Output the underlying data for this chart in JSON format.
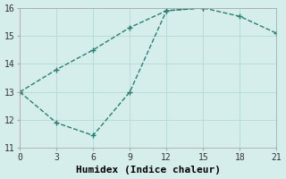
{
  "line1_x": [
    0,
    3,
    6,
    9,
    12,
    15,
    18,
    21
  ],
  "line1_y": [
    13.0,
    11.9,
    11.45,
    13.0,
    15.9,
    16.0,
    15.7,
    15.1
  ],
  "line2_x": [
    0,
    3,
    6,
    9,
    12,
    15
  ],
  "line2_y": [
    13.0,
    13.8,
    14.5,
    15.3,
    15.9,
    16.0
  ],
  "line_color": "#2a7f72",
  "marker": "+",
  "marker_size": 5,
  "xlabel": "Humidex (Indice chaleur)",
  "xlim": [
    0,
    21
  ],
  "ylim": [
    11,
    16
  ],
  "xticks": [
    0,
    3,
    6,
    9,
    12,
    15,
    18,
    21
  ],
  "yticks": [
    11,
    12,
    13,
    14,
    15,
    16
  ],
  "bg_color": "#d5eeeb",
  "grid_color": "#b8ddd9",
  "tick_fontsize": 7,
  "xlabel_fontsize": 8,
  "line_width": 1.0
}
